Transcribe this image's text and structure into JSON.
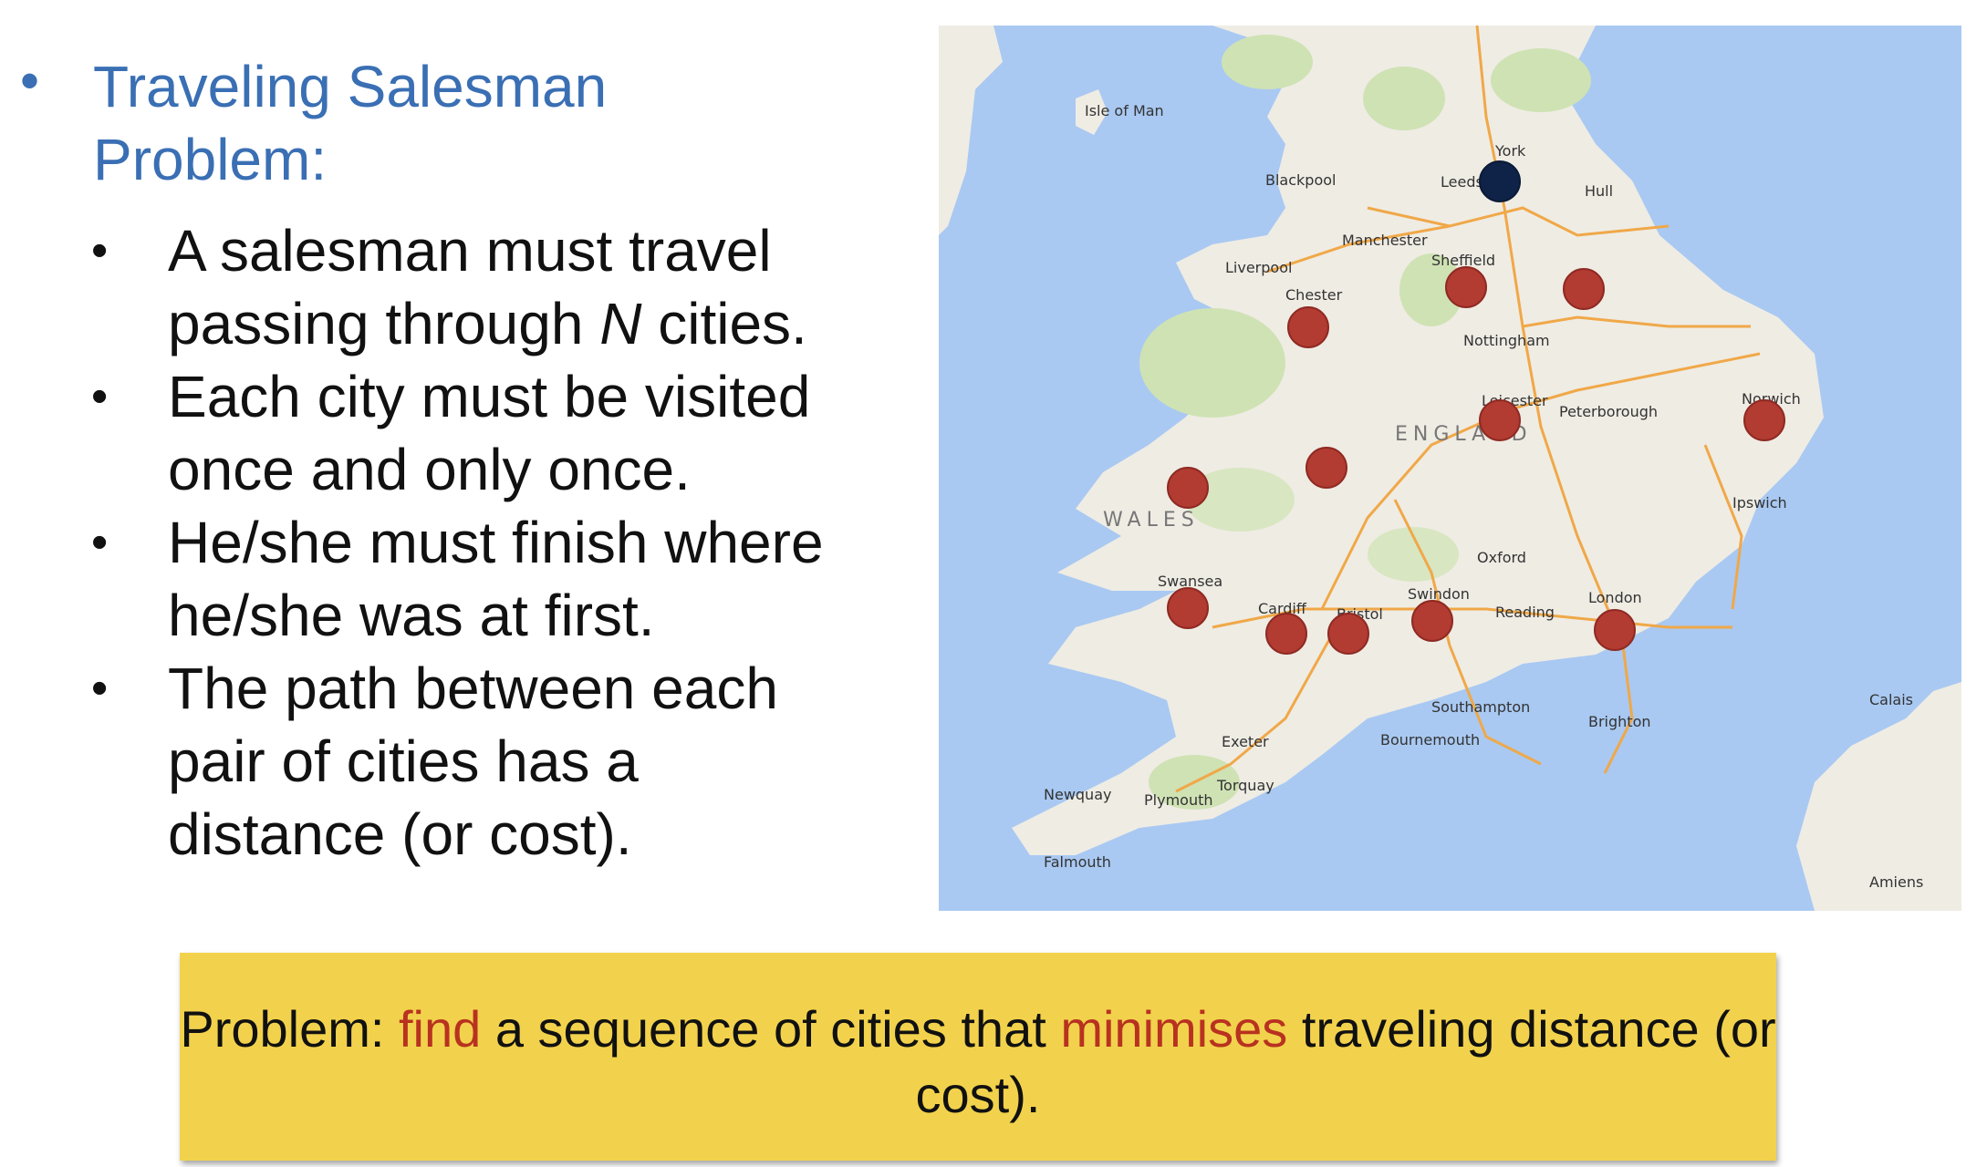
{
  "title": {
    "bullet": "•",
    "text": "Traveling Salesman Problem:"
  },
  "sub_points": [
    {
      "bullet": "•",
      "before": "A salesman must travel passing through ",
      "italic": "N",
      "after": " cities."
    },
    {
      "bullet": "•",
      "before": "Each city must be visited once and only once.",
      "italic": "",
      "after": ""
    },
    {
      "bullet": "•",
      "before": "He/she must finish where he/she was at first.",
      "italic": "",
      "after": ""
    },
    {
      "bullet": "•",
      "before": "The path between each pair of cities has a distance (or cost).",
      "italic": "",
      "after": ""
    }
  ],
  "map": {
    "labels": {
      "isle_of_man": "Isle of Man",
      "york": "York",
      "leeds": "Leeds",
      "hull": "Hull",
      "blackpool": "Blackpool",
      "manchester": "Manchester",
      "liverpool": "Liverpool",
      "sheffield": "Sheffield",
      "chester": "Chester",
      "nottingham": "Nottingham",
      "leicester": "Leicester",
      "peterborough": "Peterborough",
      "norwich": "Norwich",
      "england": "ENGLAND",
      "wales": "WALES",
      "ipswich": "Ipswich",
      "oxford": "Oxford",
      "swansea": "Swansea",
      "cardiff": "Cardiff",
      "bristol": "Bristol",
      "swindon": "Swindon",
      "reading": "Reading",
      "london": "London",
      "southampton": "Southampton",
      "brighton": "Brighton",
      "bournemouth": "Bournemouth",
      "exeter": "Exeter",
      "torquay": "Torquay",
      "plymouth": "Plymouth",
      "newquay": "Newquay",
      "falmouth": "Falmouth",
      "amiens": "Amiens",
      "calais": "Calais"
    },
    "colors": {
      "sea": "#a9c9f2",
      "land": "#efece4",
      "park": "#cfe2b4",
      "road": "#f0a848",
      "city_marker": "#b23b32",
      "start_marker": "#0e2347"
    }
  },
  "callout": {
    "prefix": "Problem: ",
    "highlight1": "find",
    "middle": " a sequence of cities that ",
    "highlight2": "minimises",
    "suffix": " traveling distance (or cost).",
    "bg_color": "#f2d24c",
    "highlight_color": "#b83220"
  }
}
